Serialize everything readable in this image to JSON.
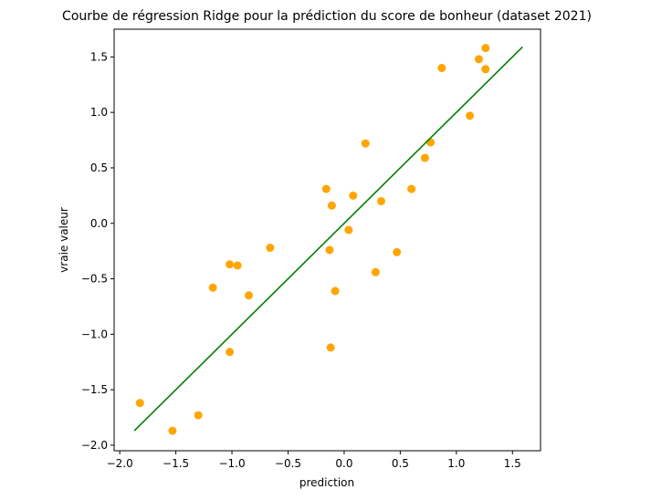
{
  "chart_data": {
    "type": "scatter",
    "title": "Courbe de régression Ridge pour la prédiction du score de bonheur (dataset 2021)",
    "xlabel": "prediction",
    "ylabel": "vraie valeur",
    "xlim": [
      -2.05,
      1.75
    ],
    "ylim": [
      -2.05,
      1.75
    ],
    "xticks": [
      -2.0,
      -1.5,
      -1.0,
      -0.5,
      0.0,
      0.5,
      1.0,
      1.5
    ],
    "yticks": [
      -2.0,
      -1.5,
      -1.0,
      -0.5,
      0.0,
      0.5,
      1.0,
      1.5
    ],
    "xtick_labels": [
      "−2.0",
      "−1.5",
      "−1.0",
      "−0.5",
      "0.0",
      "0.5",
      "1.0",
      "1.5"
    ],
    "ytick_labels": [
      "−2.0",
      "−1.5",
      "−1.0",
      "−0.5",
      "0.0",
      "0.5",
      "1.0",
      "1.5"
    ],
    "grid": false,
    "points": [
      {
        "x": -1.82,
        "y": -1.62
      },
      {
        "x": -1.53,
        "y": -1.87
      },
      {
        "x": -1.3,
        "y": -1.73
      },
      {
        "x": -1.17,
        "y": -0.58
      },
      {
        "x": -1.02,
        "y": -0.37
      },
      {
        "x": -0.95,
        "y": -0.38
      },
      {
        "x": -1.02,
        "y": -1.16
      },
      {
        "x": -0.85,
        "y": -0.65
      },
      {
        "x": -0.66,
        "y": -0.22
      },
      {
        "x": -0.16,
        "y": 0.31
      },
      {
        "x": -0.11,
        "y": 0.16
      },
      {
        "x": -0.13,
        "y": -0.24
      },
      {
        "x": -0.12,
        "y": -1.12
      },
      {
        "x": -0.08,
        "y": -0.61
      },
      {
        "x": 0.04,
        "y": -0.06
      },
      {
        "x": 0.08,
        "y": 0.25
      },
      {
        "x": 0.19,
        "y": 0.72
      },
      {
        "x": 0.28,
        "y": -0.44
      },
      {
        "x": 0.33,
        "y": 0.2
      },
      {
        "x": 0.47,
        "y": -0.26
      },
      {
        "x": 0.6,
        "y": 0.31
      },
      {
        "x": 0.72,
        "y": 0.59
      },
      {
        "x": 0.77,
        "y": 0.73
      },
      {
        "x": 0.87,
        "y": 1.4
      },
      {
        "x": 1.12,
        "y": 0.97
      },
      {
        "x": 1.2,
        "y": 1.48
      },
      {
        "x": 1.26,
        "y": 1.58
      },
      {
        "x": 1.26,
        "y": 1.39
      }
    ],
    "line": {
      "x": [
        -1.87,
        1.59
      ],
      "y": [
        -1.87,
        1.59
      ]
    },
    "point_color": "#FFA500",
    "line_color": "#008000"
  }
}
